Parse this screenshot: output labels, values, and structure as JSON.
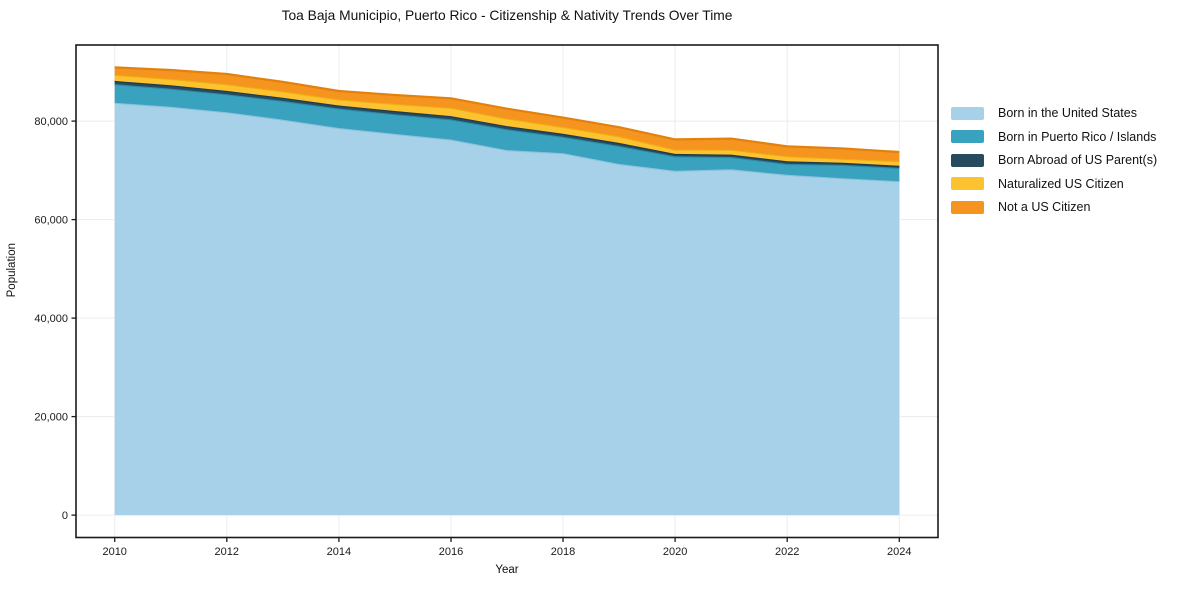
{
  "title": "Toa Baja Municipio, Puerto Rico - Citizenship & Nativity Trends Over Time",
  "x_axis": {
    "label": "Year",
    "ticks": [
      {
        "v": 2010,
        "label": "2010"
      },
      {
        "v": 2012,
        "label": "2012"
      },
      {
        "v": 2014,
        "label": "2014"
      },
      {
        "v": 2016,
        "label": "2016"
      },
      {
        "v": 2018,
        "label": "2018"
      },
      {
        "v": 2020,
        "label": "2020"
      },
      {
        "v": 2022,
        "label": "2022"
      },
      {
        "v": 2024,
        "label": "2024"
      }
    ]
  },
  "y_axis": {
    "label": "Population",
    "ticks": [
      {
        "v": 0,
        "label": "0"
      },
      {
        "v": 20000,
        "label": "20,000"
      },
      {
        "v": 40000,
        "label": "40,000"
      },
      {
        "v": 60000,
        "label": "60,000"
      },
      {
        "v": 80000,
        "label": "80,000"
      }
    ]
  },
  "chart_data": {
    "type": "area",
    "stacked": true,
    "title": "Toa Baja Municipio, Puerto Rico - Citizenship & Nativity Trends Over Time",
    "xlabel": "Year",
    "ylabel": "Population",
    "grid": true,
    "legend_position": "right-outside",
    "x": [
      2010,
      2011,
      2012,
      2013,
      2014,
      2015,
      2016,
      2017,
      2018,
      2019,
      2020,
      2021,
      2022,
      2023,
      2024
    ],
    "xlim": [
      2009.31,
      2024.69
    ],
    "ylim": [
      -4545,
      95445
    ],
    "series": [
      {
        "id": "born_us",
        "name": "Born in the United States",
        "color": "#a6d1e8",
        "edge": "#8cc0dc",
        "values": [
          83700,
          82900,
          81800,
          80300,
          78600,
          77400,
          76250,
          74100,
          73500,
          71300,
          69900,
          70200,
          69100,
          68400,
          67800
        ]
      },
      {
        "id": "pr_islands",
        "name": "Born in Puerto Rico / Islands",
        "color": "#38a2bf",
        "edge": "#2d8ba6",
        "values": [
          3800,
          3700,
          3650,
          3800,
          3950,
          4000,
          4080,
          4250,
          3300,
          3650,
          2950,
          2500,
          2200,
          2700,
          2700
        ]
      },
      {
        "id": "born_abroad",
        "name": "Born Abroad of US Parent(s)",
        "color": "#264a5e",
        "edge": "#1d3b4c",
        "values": [
          650,
          660,
          680,
          650,
          620,
          640,
          670,
          620,
          610,
          610,
          490,
          490,
          560,
          420,
          420
        ]
      },
      {
        "id": "naturalized",
        "name": "Naturalized US Citizen",
        "color": "#fdc22f",
        "edge": "#edae12",
        "values": [
          1250,
          1300,
          1380,
          1300,
          1230,
          1450,
          1720,
          1550,
          1400,
          1350,
          880,
          1000,
          1000,
          820,
          950
        ]
      },
      {
        "id": "not_citizen",
        "name": "Not a US Citizen",
        "color": "#f5941f",
        "edge": "#e2820d",
        "values": [
          1500,
          1800,
          2050,
          1900,
          1700,
          1800,
          1900,
          2000,
          1900,
          1850,
          2050,
          2260,
          2000,
          2100,
          1850
        ]
      }
    ]
  },
  "style": {
    "plot_border_color": "#1a1a1a",
    "gridline_color": "#ececec",
    "tick_color": "#1a1a1a",
    "background": "#ffffff"
  }
}
